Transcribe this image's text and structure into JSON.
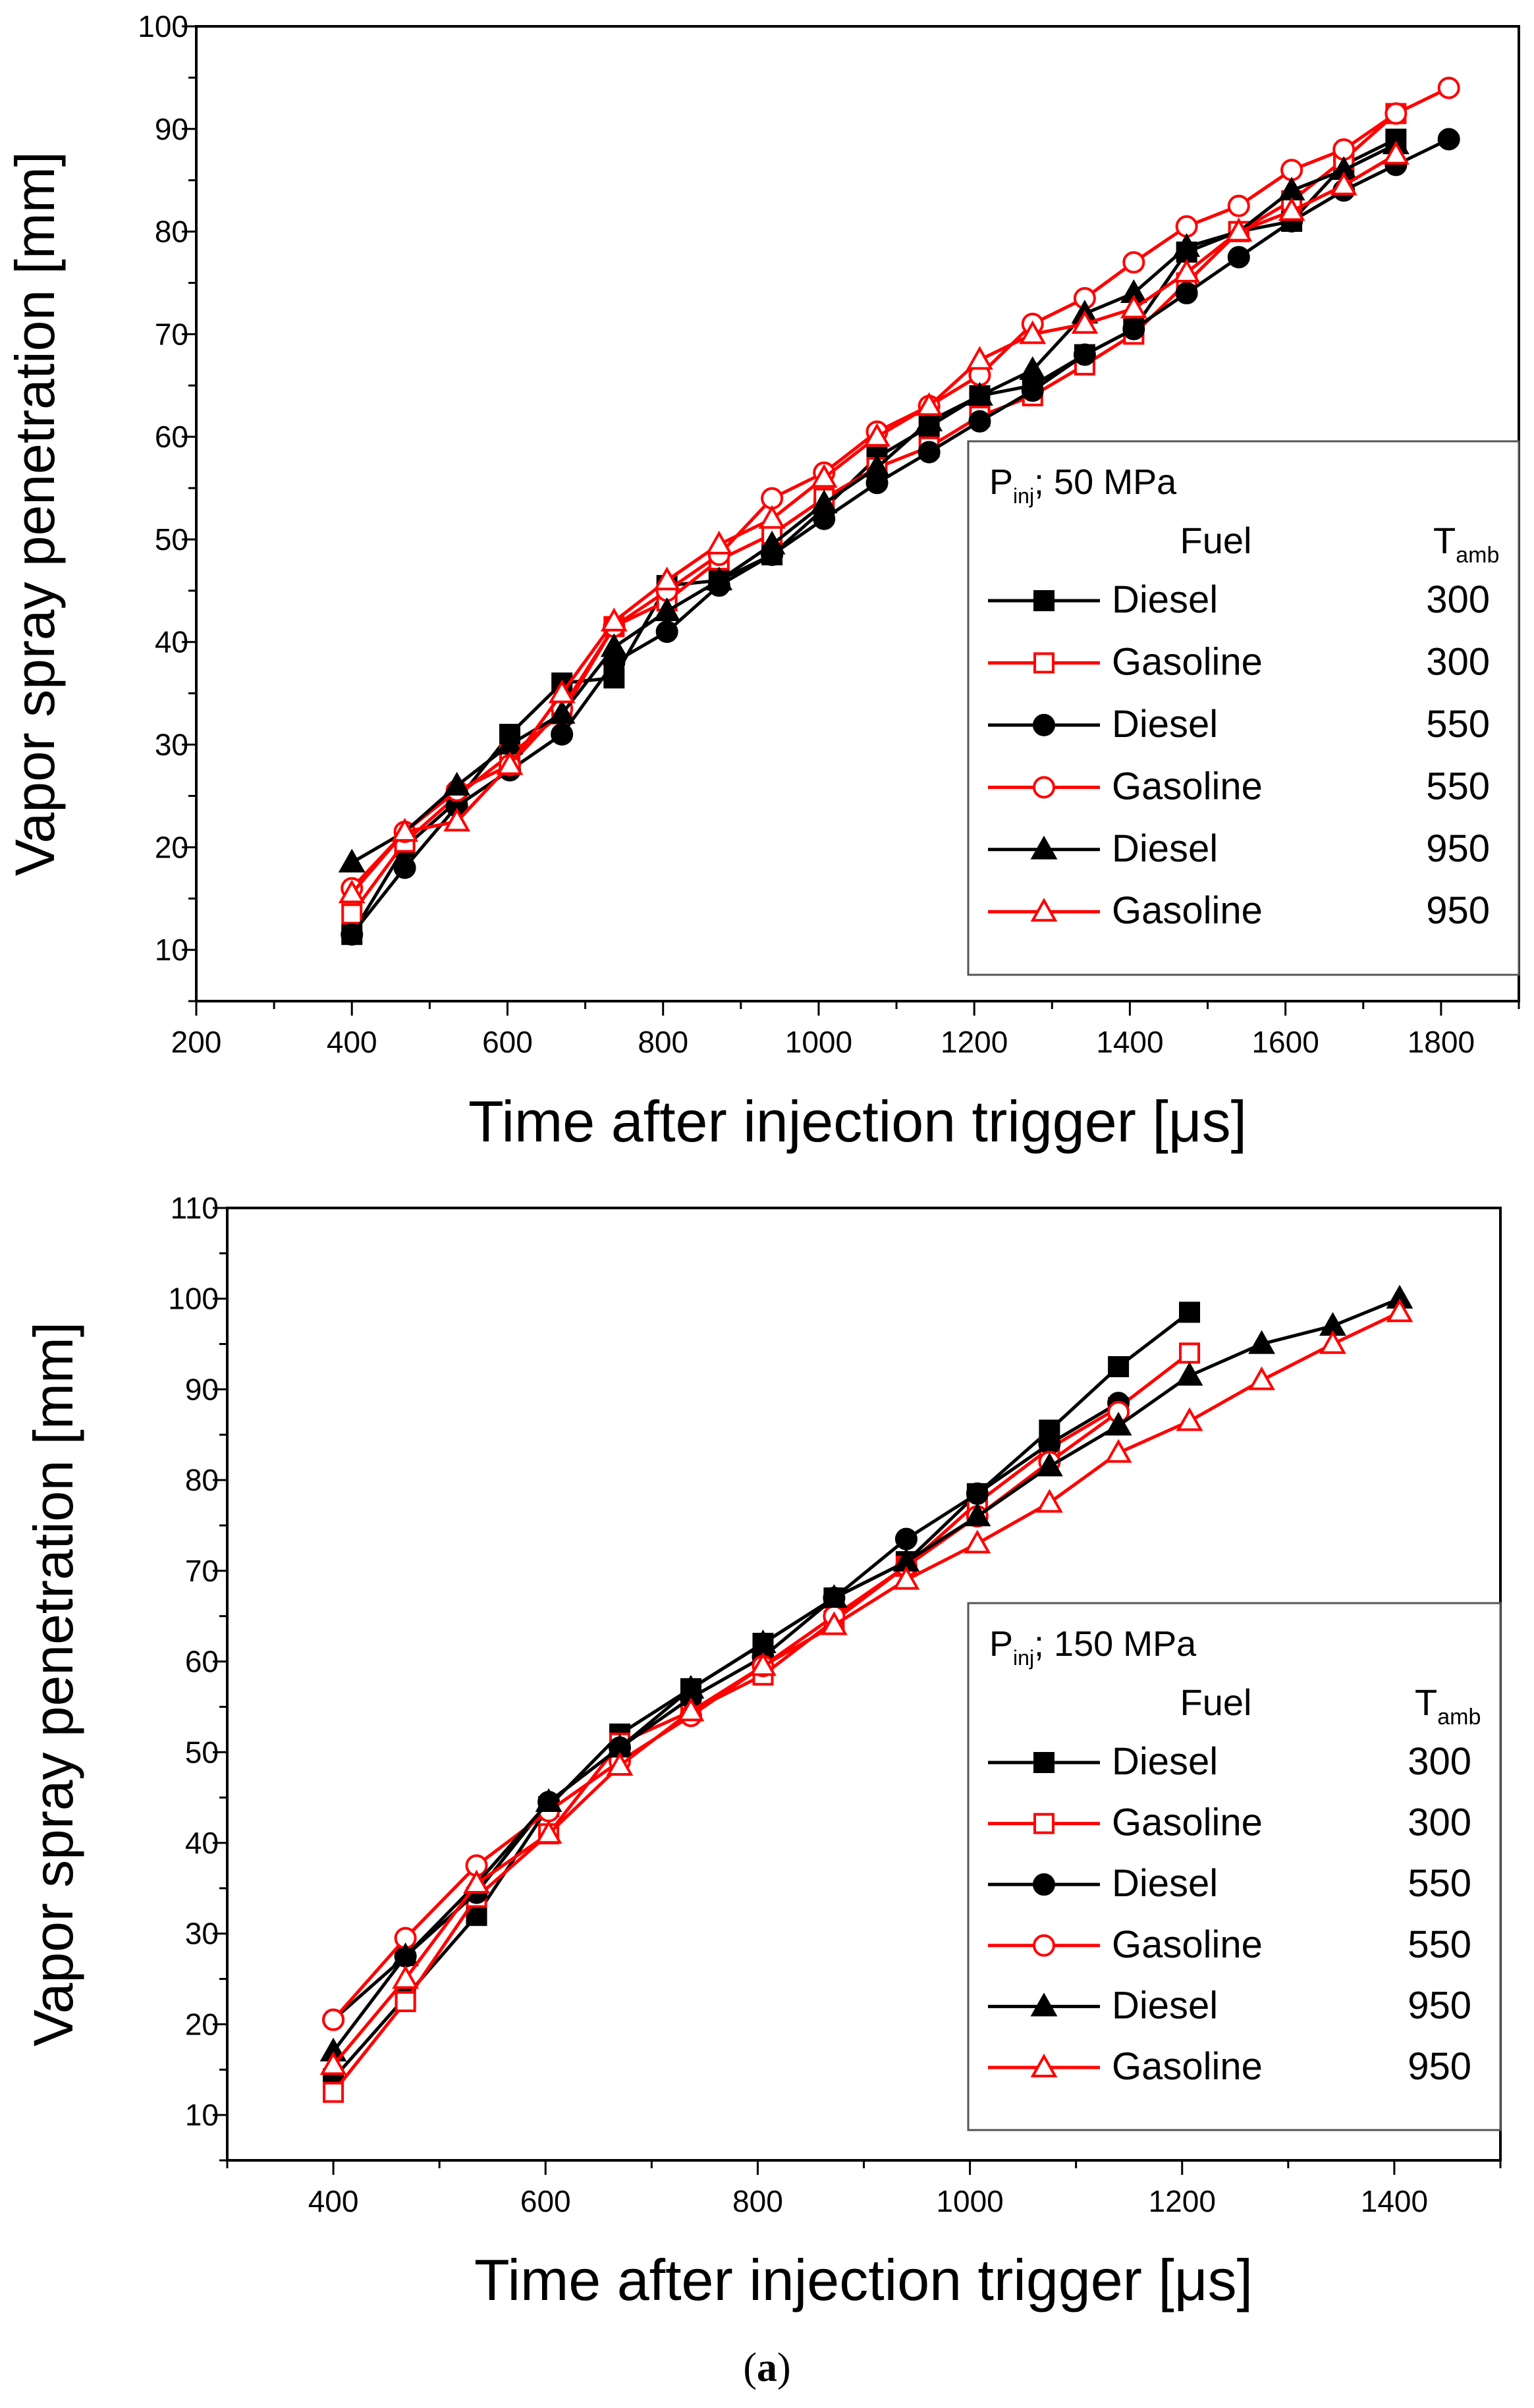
{
  "caption": {
    "open": "(",
    "letter": "a",
    "close": ")"
  },
  "colors": {
    "diesel": "#000000",
    "gasoline": "#ff0000"
  },
  "chart_data": [
    {
      "type": "line",
      "xlabel": "Time after injection trigger [μs]",
      "ylabel": "Vapor spray penetration [mm]",
      "xlim": [
        200,
        1900
      ],
      "ylim": [
        5,
        100
      ],
      "xticks": [
        "200",
        "400",
        "600",
        "800",
        "1000",
        "1200",
        "1400",
        "1600",
        "1800"
      ],
      "yticks": [
        "10",
        "20",
        "30",
        "40",
        "50",
        "60",
        "70",
        "80",
        "90",
        "100"
      ],
      "legend": {
        "placement": "bottom-right",
        "title_p": "P",
        "title_sub": "inj",
        "title_rest": "; 50 MPa",
        "col_fuel": "Fuel",
        "col_t": "T",
        "col_t_sub": "amb"
      },
      "series": [
        {
          "fuel": "Diesel",
          "temp": "300",
          "color": "#000000",
          "marker": "square",
          "filled": true,
          "x": [
            400,
            468,
            535,
            603,
            670,
            737,
            805,
            872,
            940,
            1007,
            1075,
            1142,
            1207,
            1275,
            1342,
            1405,
            1473,
            1540,
            1608,
            1675,
            1742
          ],
          "y": [
            11.5,
            20,
            24.5,
            31,
            36,
            36.5,
            45.5,
            46,
            48.5,
            53,
            58,
            61,
            64,
            65,
            68,
            70.5,
            78,
            80,
            81,
            86.5,
            89
          ]
        },
        {
          "fuel": "Gasoline",
          "temp": "300",
          "color": "#ff0000",
          "marker": "square",
          "filled": false,
          "x": [
            400,
            468,
            535,
            603,
            670,
            737,
            805,
            872,
            940,
            1007,
            1075,
            1142,
            1207,
            1275,
            1342,
            1405,
            1473,
            1540,
            1608,
            1675,
            1742
          ],
          "y": [
            13.5,
            20.5,
            25,
            29,
            33,
            41.5,
            44,
            48,
            50.5,
            54,
            57,
            59,
            62,
            64,
            67,
            70,
            75,
            80,
            83,
            87,
            91.5
          ]
        },
        {
          "fuel": "Diesel",
          "temp": "550",
          "color": "#000000",
          "marker": "circle",
          "filled": true,
          "x": [
            400,
            468,
            535,
            603,
            670,
            737,
            805,
            872,
            940,
            1007,
            1075,
            1142,
            1207,
            1275,
            1342,
            1405,
            1473,
            1540,
            1608,
            1675,
            1742,
            1810
          ],
          "y": [
            11.5,
            18,
            24,
            27.5,
            31,
            38,
            41,
            45.5,
            48.5,
            52,
            55.5,
            58.5,
            61.5,
            64.5,
            68,
            70.5,
            74,
            77.5,
            81,
            84,
            86.5,
            89
          ]
        },
        {
          "fuel": "Gasoline",
          "temp": "550",
          "color": "#ff0000",
          "marker": "circle",
          "filled": false,
          "x": [
            400,
            468,
            535,
            603,
            670,
            737,
            805,
            872,
            940,
            1007,
            1075,
            1142,
            1207,
            1275,
            1342,
            1405,
            1473,
            1540,
            1608,
            1675,
            1742,
            1810
          ],
          "y": [
            16,
            21.5,
            25.5,
            28,
            33.5,
            41.5,
            45,
            48.5,
            54,
            56.5,
            60.5,
            63,
            66,
            71,
            73.5,
            77,
            80.5,
            82.5,
            86,
            88,
            91.5,
            94
          ]
        },
        {
          "fuel": "Diesel",
          "temp": "950",
          "color": "#000000",
          "marker": "triangle",
          "filled": true,
          "x": [
            400,
            468,
            535,
            603,
            670,
            737,
            805,
            872,
            940,
            1007,
            1075,
            1142,
            1207,
            1275,
            1342,
            1405,
            1473,
            1540,
            1608,
            1675,
            1742
          ],
          "y": [
            18.5,
            21.5,
            26,
            30,
            33,
            39.5,
            43,
            46,
            49.5,
            53.5,
            57,
            61.5,
            64,
            66.5,
            72,
            74,
            78.5,
            80,
            84,
            86,
            88.5
          ]
        },
        {
          "fuel": "Gasoline",
          "temp": "950",
          "color": "#ff0000",
          "marker": "triangle",
          "filled": false,
          "x": [
            400,
            468,
            535,
            603,
            670,
            737,
            805,
            872,
            940,
            1007,
            1075,
            1142,
            1207,
            1275,
            1342,
            1405,
            1473,
            1540,
            1608,
            1675,
            1742
          ],
          "y": [
            15.5,
            21.5,
            22.5,
            28,
            35,
            42,
            46,
            49.5,
            52,
            56,
            60,
            63,
            67.5,
            70,
            71,
            72.5,
            76,
            80,
            82,
            84.5,
            87.5
          ]
        }
      ]
    },
    {
      "type": "line",
      "xlabel": "Time after injection trigger [μs]",
      "ylabel": "Vapor spray penetration [mm]",
      "xlim": [
        300,
        1500
      ],
      "ylim": [
        5,
        110
      ],
      "xticks": [
        "400",
        "600",
        "800",
        "1000",
        "1200",
        "1400"
      ],
      "yticks": [
        "10",
        "20",
        "30",
        "40",
        "50",
        "60",
        "70",
        "80",
        "90",
        "100",
        "110"
      ],
      "legend": {
        "placement": "bottom-right",
        "title_p": "P",
        "title_sub": "inj",
        "title_rest": "; 150 MPa",
        "col_fuel": "Fuel",
        "col_t": "T",
        "col_t_sub": "amb"
      },
      "series": [
        {
          "fuel": "Diesel",
          "temp": "300",
          "color": "#000000",
          "marker": "square",
          "filled": true,
          "x": [
            400,
            468,
            535,
            603,
            670,
            737,
            805,
            872,
            940,
            1007,
            1075,
            1140,
            1207
          ],
          "y": [
            14,
            23,
            32,
            44,
            52,
            57,
            62,
            67,
            71,
            78.5,
            85.5,
            92.5,
            98.5
          ]
        },
        {
          "fuel": "Gasoline",
          "temp": "300",
          "color": "#ff0000",
          "marker": "square",
          "filled": false,
          "x": [
            400,
            468,
            535,
            603,
            670,
            737,
            805,
            872,
            940,
            1007,
            1075,
            1140,
            1207
          ],
          "y": [
            12.5,
            22.5,
            34,
            41,
            51,
            54.5,
            58.5,
            64.5,
            70.5,
            77.5,
            83.5,
            88,
            94
          ]
        },
        {
          "fuel": "Diesel",
          "temp": "550",
          "color": "#000000",
          "marker": "circle",
          "filled": true,
          "x": [
            400,
            468,
            535,
            603,
            670,
            737,
            805,
            872,
            940,
            1007,
            1075,
            1140
          ],
          "y": [
            20.5,
            27.5,
            34.5,
            44.5,
            50.5,
            56,
            60.5,
            67,
            73.5,
            78.5,
            84,
            88.5
          ]
        },
        {
          "fuel": "Gasoline",
          "temp": "550",
          "color": "#ff0000",
          "marker": "circle",
          "filled": false,
          "x": [
            400,
            468,
            535,
            603,
            670,
            737,
            805,
            872,
            940,
            1007,
            1075,
            1140
          ],
          "y": [
            20.5,
            29.5,
            37.5,
            43.5,
            49,
            54,
            59.5,
            65,
            70.5,
            76,
            82,
            87.5
          ]
        },
        {
          "fuel": "Diesel",
          "temp": "950",
          "color": "#000000",
          "marker": "triangle",
          "filled": true,
          "x": [
            400,
            468,
            535,
            603,
            670,
            737,
            805,
            872,
            940,
            1007,
            1075,
            1140,
            1207,
            1275,
            1342,
            1405
          ],
          "y": [
            17,
            27.5,
            35.5,
            44.5,
            50.5,
            57,
            62,
            67,
            71,
            76,
            81.5,
            86,
            91.5,
            95,
            97,
            100
          ]
        },
        {
          "fuel": "Gasoline",
          "temp": "950",
          "color": "#ff0000",
          "marker": "triangle",
          "filled": false,
          "x": [
            400,
            468,
            535,
            603,
            670,
            737,
            805,
            872,
            940,
            1007,
            1075,
            1140,
            1207,
            1275,
            1342,
            1405
          ],
          "y": [
            15.5,
            25,
            35.5,
            41,
            48.5,
            54.5,
            59.5,
            64,
            69,
            73,
            77.5,
            83,
            86.5,
            91,
            95,
            98.5
          ]
        }
      ]
    }
  ]
}
